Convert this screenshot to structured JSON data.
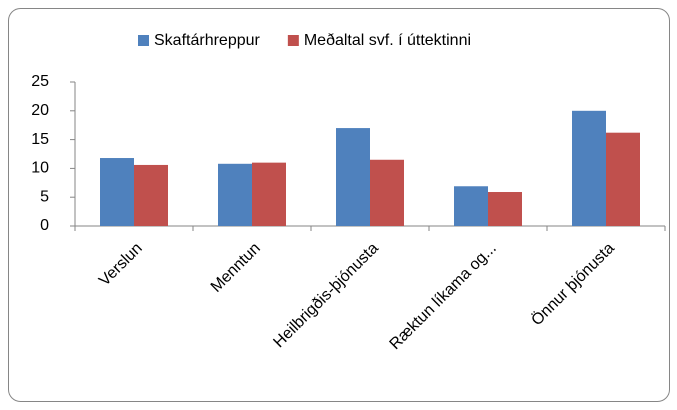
{
  "chart_data": {
    "type": "bar",
    "categories": [
      "Verslun",
      "Menntun",
      "Heilbrigðis-þjónusta",
      "Ræktun líkama og...",
      "Önnur þjónusta"
    ],
    "series": [
      {
        "name": "Skaftárhreppur",
        "color": "#4f81bd",
        "values": [
          11.8,
          10.8,
          17.0,
          6.9,
          20.0
        ]
      },
      {
        "name": "Meðaltal svf. í úttektinni",
        "color": "#c0504d",
        "values": [
          10.6,
          11.0,
          11.5,
          5.9,
          16.2
        ]
      }
    ],
    "ylim": [
      0,
      25
    ],
    "yticks": [
      0,
      5,
      10,
      15,
      20,
      25
    ],
    "grid": false,
    "legend": "top"
  }
}
